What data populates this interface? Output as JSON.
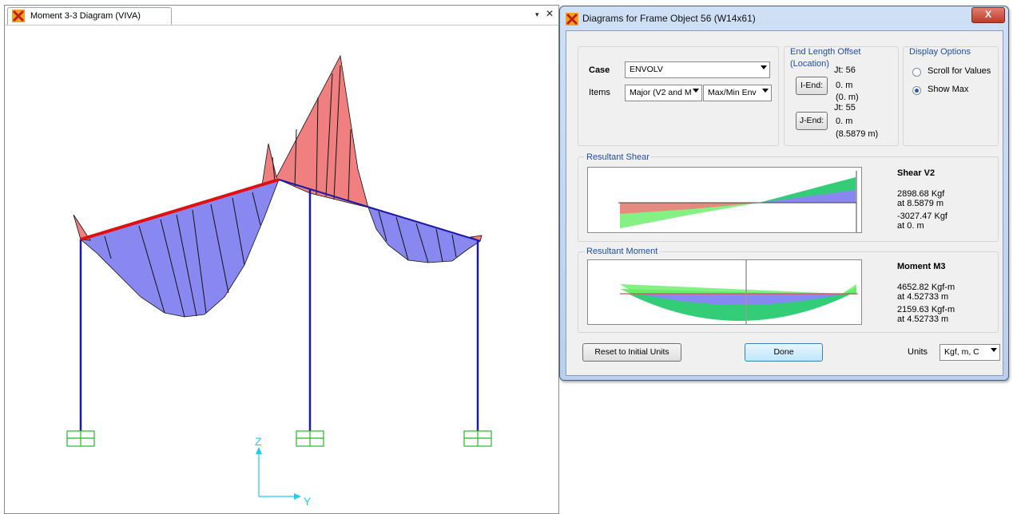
{
  "left_window": {
    "tab_title": "Moment 3-3 Diagram (VIVA)",
    "dropdown_glyph": "▾",
    "close_glyph": "✕",
    "axis_z": "Z",
    "axis_y": "Y"
  },
  "dialog": {
    "title": "Diagrams for Frame Object 56  (W14x61)",
    "close_glyph": "X",
    "case_label": "Case",
    "case_value": "ENVOLV",
    "items_label": "Items",
    "items_value": "Major (V2 and M",
    "env_value": "Max/Min Env",
    "end_offset_title": "End Length Offset",
    "location_label": "(Location)",
    "i_end_button": "I-End:",
    "j_end_button": "J-End:",
    "i_jt": "Jt:  56",
    "i_offset": "0. m",
    "i_location": "(0. m)",
    "j_jt": "Jt:  55",
    "j_offset": "0. m",
    "j_location": "(8.5879 m)",
    "display_options_title": "Display Options",
    "scroll_label": "Scroll for Values",
    "show_max_label": "Show Max",
    "selected_display_option": "Show Max",
    "shear_title": "Resultant Shear",
    "shear_heading": "Shear V2",
    "shear_max": "2898.68 Kgf",
    "shear_max_loc": "at 8.5879 m",
    "shear_min": "-3027.47 Kgf",
    "shear_min_loc": "at 0. m",
    "moment_title": "Resultant Moment",
    "moment_heading": "Moment M3",
    "moment_v1": "4652.82 Kgf-m",
    "moment_v1_loc": "at 4.52733 m",
    "moment_v2": "2159.63 Kgf-m",
    "moment_v2_loc": "at 4.52733 m",
    "reset_button": "Reset to Initial Units",
    "done_button": "Done",
    "units_label": "Units",
    "units_value": "Kgf, m, C"
  },
  "colors": {
    "positive_fill": "#f08080",
    "negative_fill": "#8888f0",
    "frame_blue": "#1a1aa8",
    "selected_red": "#e01010",
    "support_green": "#22bb22",
    "axis_cyan": "#22ccee",
    "envelope_green": "#33cc77"
  }
}
